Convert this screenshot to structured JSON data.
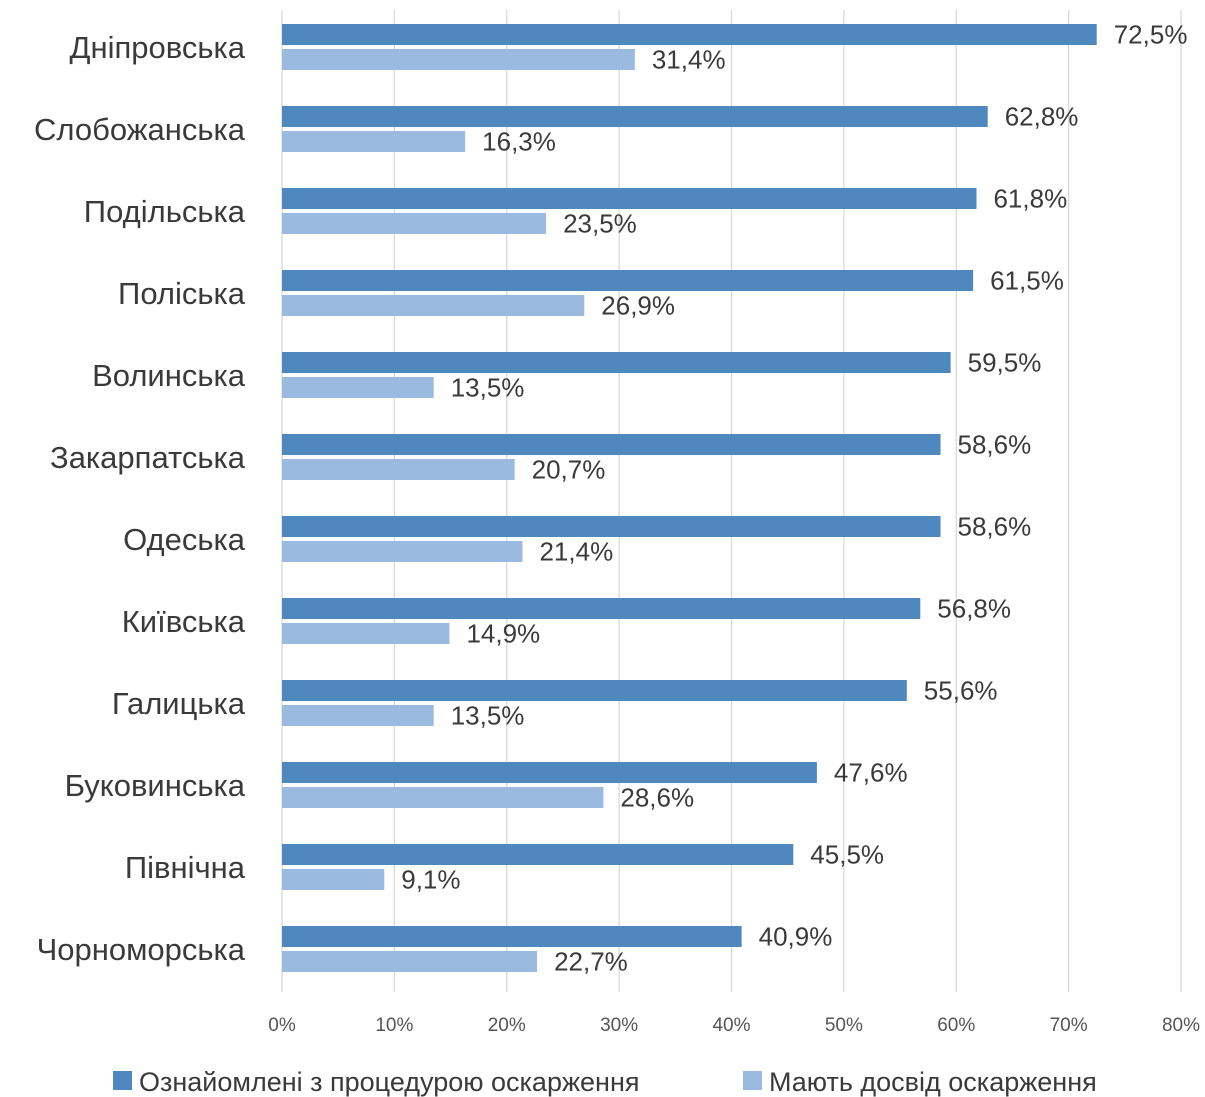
{
  "chart_data": {
    "type": "bar",
    "orientation": "horizontal",
    "categories": [
      "Дніпровська",
      "Слобожанська",
      "Подільська",
      "Поліська",
      "Волинська",
      "Закарпатська",
      "Одеська",
      "Київська",
      "Галицька",
      "Буковинська",
      "Північна",
      "Чорноморська"
    ],
    "series": [
      {
        "name": "Ознайомлені з процедурою оскарження",
        "color": "#4F88BF",
        "values": [
          72.5,
          62.8,
          61.8,
          61.5,
          59.5,
          58.6,
          58.6,
          56.8,
          55.6,
          47.6,
          45.5,
          40.9
        ],
        "labels": [
          "72,5%",
          "62,8%",
          "61,8%",
          "61,5%",
          "59,5%",
          "58,6%",
          "58,6%",
          "56,8%",
          "55,6%",
          "47,6%",
          "45,5%",
          "40,9%"
        ]
      },
      {
        "name": "Мають досвід оскарження",
        "color": "#9BBAE0",
        "values": [
          31.4,
          16.3,
          23.5,
          26.9,
          13.5,
          20.7,
          21.4,
          14.9,
          13.5,
          28.6,
          9.1,
          22.7
        ],
        "labels": [
          "31,4%",
          "16,3%",
          "23,5%",
          "26,9%",
          "13,5%",
          "20,7%",
          "21,4%",
          "14,9%",
          "13,5%",
          "28,6%",
          "9,1%",
          "22,7%"
        ]
      }
    ],
    "xlim": [
      0,
      80
    ],
    "xticks": [
      "0%",
      "10%",
      "20%",
      "30%",
      "40%",
      "50%",
      "60%",
      "70%",
      "80%"
    ],
    "grid": true,
    "legend_position": "bottom",
    "gridline_color": "#D9D9D9"
  }
}
